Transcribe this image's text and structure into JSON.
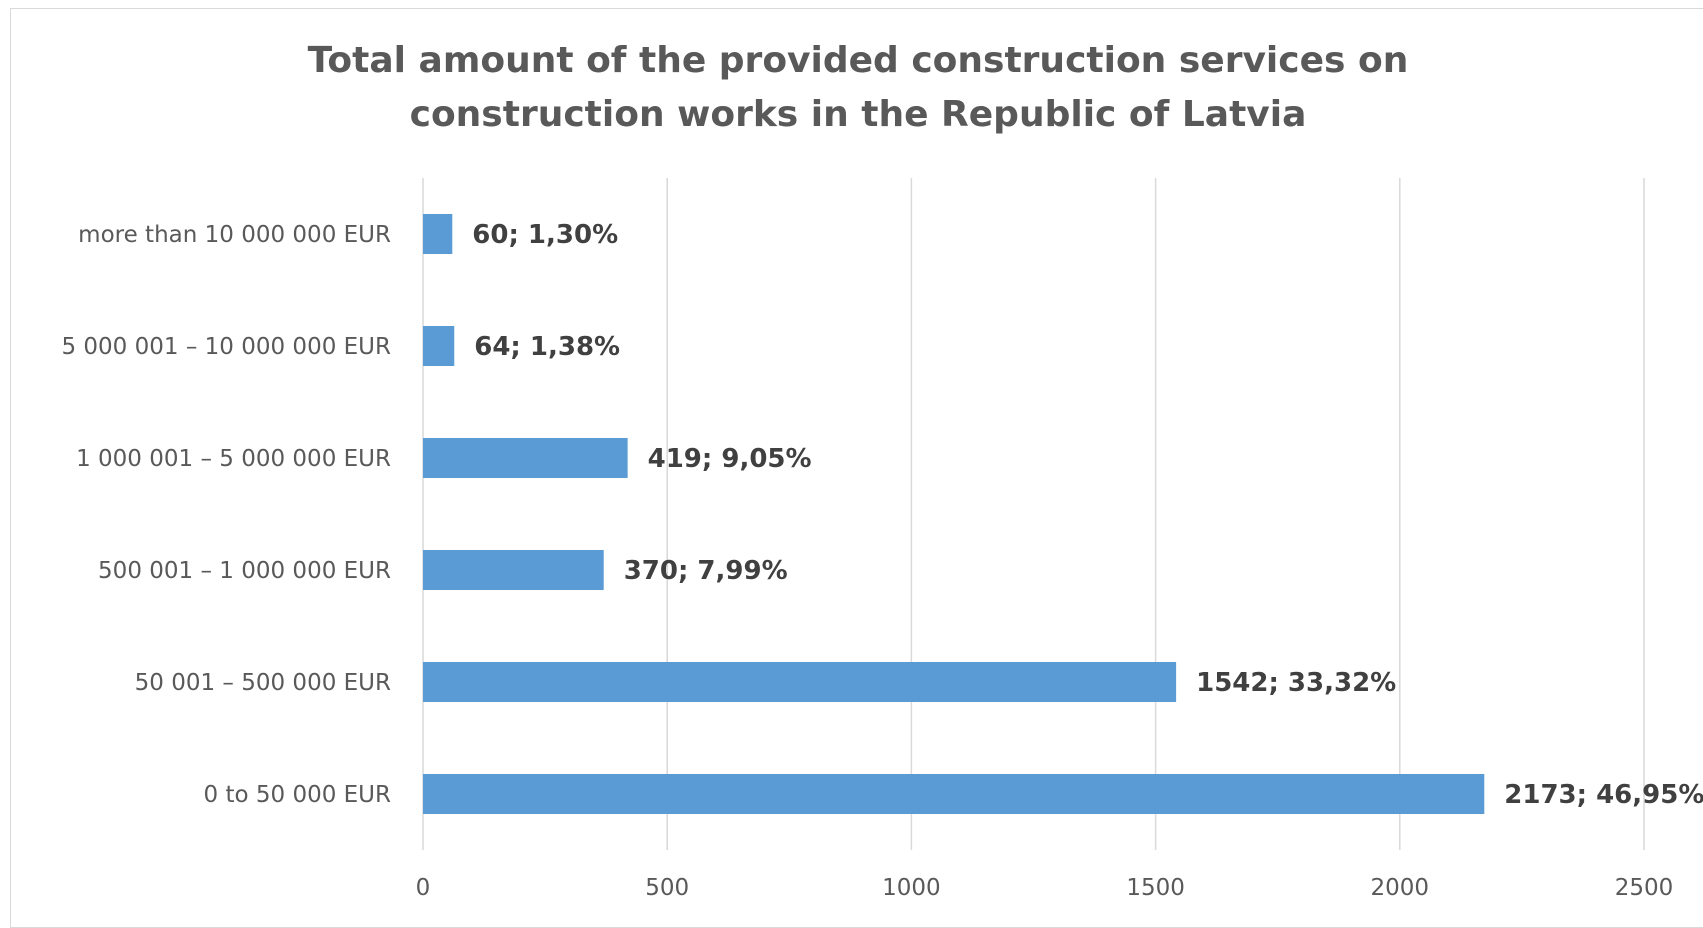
{
  "chart_data": {
    "type": "bar",
    "orientation": "horizontal",
    "title": "Total amount of the provided construction services on construction works in the Republic of Latvia",
    "title_lines": [
      "Total amount of the provided construction services on",
      "construction works in the Republic of Latvia"
    ],
    "categories": [
      "more than 10 000 000 EUR",
      "5 000 001 – 10 000 000 EUR",
      "1 000 001 – 5 000 000 EUR",
      "500 001 – 1 000 000 EUR",
      "50 001 – 500 000 EUR",
      "0 to 50 000 EUR"
    ],
    "values": [
      60,
      64,
      419,
      370,
      1542,
      2173
    ],
    "percentages": [
      "1,30%",
      "1,38%",
      "9,05%",
      "7,99%",
      "33,32%",
      "46,95%"
    ],
    "data_labels": [
      "60; 1,30%",
      "64; 1,38%",
      "419; 9,05%",
      "370; 7,99%",
      "1542; 33,32%",
      "2173; 46,95%"
    ],
    "xlim": [
      0,
      2500
    ],
    "xticks": [
      0,
      500,
      1000,
      1500,
      2000,
      2500
    ],
    "xlabel": "",
    "ylabel": "",
    "grid": true,
    "legend": "none",
    "bar_color": "#5b9bd5"
  }
}
